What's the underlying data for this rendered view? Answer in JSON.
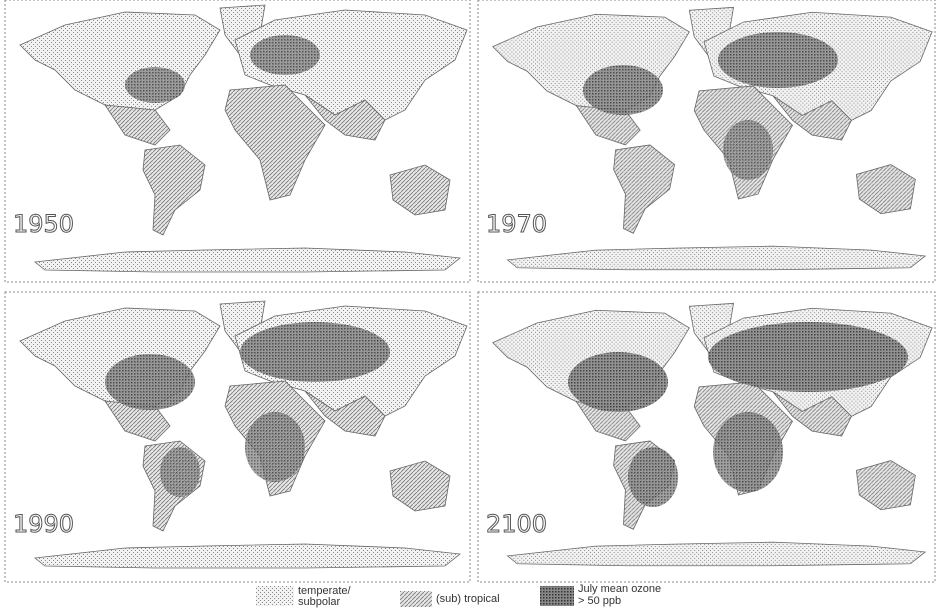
{
  "panels": [
    {
      "label": "1950"
    },
    {
      "label": "1970"
    },
    {
      "label": "1990"
    },
    {
      "label": "2100"
    }
  ],
  "legend": [
    {
      "lines": [
        "temperate/",
        "subpolar"
      ]
    },
    {
      "lines": [
        "(sub) tropical"
      ]
    },
    {
      "lines": [
        "July mean ozone",
        "> 50 ppb"
      ]
    }
  ]
}
